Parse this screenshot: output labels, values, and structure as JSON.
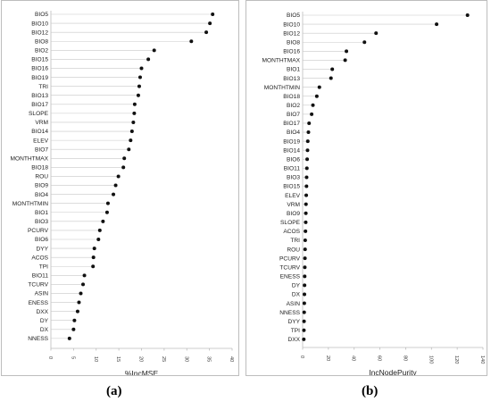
{
  "chart_data": [
    {
      "type": "scatter",
      "xlabel": "%IncMSE",
      "xlim": [
        0,
        40
      ],
      "xticks": [
        0,
        5,
        10,
        15,
        20,
        25,
        30,
        35,
        40
      ],
      "grid": false,
      "categories": [
        "BIO5",
        "BIO10",
        "BIO12",
        "BIO8",
        "BIO2",
        "BIO15",
        "BIO16",
        "BIO19",
        "TRI",
        "BIO13",
        "BIO17",
        "SLOPE",
        "VRM",
        "BIO14",
        "ELEV",
        "BIO7",
        "MONTHTMAX",
        "BIO18",
        "ROU",
        "BIO9",
        "BIO4",
        "MONTHTMIN",
        "BIO1",
        "BIO3",
        "PCURV",
        "BIO6",
        "DYY",
        "ACOS",
        "TPI",
        "BIO11",
        "TCURV",
        "ASIN",
        "ENESS",
        "DXX",
        "DY",
        "DX",
        "NNESS"
      ],
      "values": [
        35.7,
        35.1,
        34.3,
        31.0,
        22.8,
        21.5,
        20.0,
        19.7,
        19.5,
        19.3,
        18.5,
        18.4,
        18.2,
        17.9,
        17.6,
        17.2,
        16.2,
        16.0,
        14.9,
        14.3,
        13.8,
        12.6,
        12.4,
        11.5,
        10.8,
        10.5,
        9.6,
        9.4,
        9.3,
        7.4,
        7.1,
        6.6,
        6.2,
        5.9,
        5.2,
        5.0,
        4.1
      ]
    },
    {
      "type": "scatter",
      "xlabel": "IncNodePurity",
      "xlim": [
        0,
        140
      ],
      "xticks": [
        0,
        20,
        40,
        60,
        80,
        100,
        120,
        140
      ],
      "grid": false,
      "categories": [
        "BIO5",
        "BIO10",
        "BIO12",
        "BIO8",
        "BIO16",
        "MONTHTMAX",
        "BIO1",
        "BIO13",
        "MONTHTMIN",
        "BIO18",
        "BIO2",
        "BIO7",
        "BIO17",
        "BIO4",
        "BIO19",
        "BIO14",
        "BIO6",
        "BIO11",
        "BIO3",
        "BIO15",
        "ELEV",
        "VRM",
        "BIO9",
        "SLOPE",
        "ACOS",
        "TRI",
        "ROU",
        "PCURV",
        "TCURV",
        "ENESS",
        "DY",
        "DX",
        "ASIN",
        "NNESS",
        "DYY",
        "TPI",
        "DXX"
      ],
      "values": [
        128,
        104,
        57,
        48,
        34,
        33,
        23,
        22,
        13,
        11,
        8,
        7,
        5,
        4.5,
        4,
        3.8,
        3.5,
        3.3,
        3.1,
        3.0,
        2.8,
        2.6,
        2.5,
        2.4,
        2.2,
        2.0,
        1.9,
        1.8,
        1.7,
        1.6,
        1.5,
        1.4,
        1.3,
        1.2,
        1.1,
        1.0,
        0.9
      ]
    }
  ],
  "captions": [
    "(a)",
    "(b)"
  ]
}
